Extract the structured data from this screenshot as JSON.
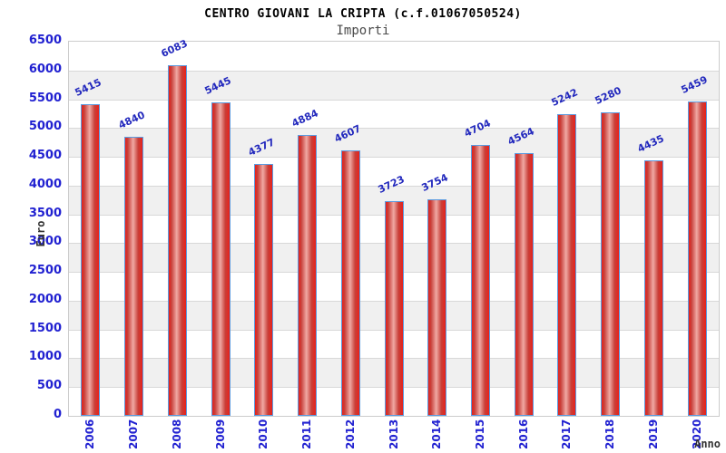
{
  "header": {
    "title": "CENTRO GIOVANI LA CRIPTA (c.f.01067050524)",
    "subtitle": "Importi"
  },
  "chart_data": {
    "type": "bar",
    "title": "CENTRO GIOVANI LA CRIPTA (c.f.01067050524)",
    "subtitle": "Importi",
    "xlabel": "Anno",
    "ylabel": "Euro",
    "categories": [
      "2006",
      "2007",
      "2008",
      "2009",
      "2010",
      "2011",
      "2012",
      "2013",
      "2014",
      "2015",
      "2016",
      "2017",
      "2018",
      "2019",
      "2020"
    ],
    "values": [
      5415,
      4840,
      6083,
      5445,
      4377,
      4884,
      4607,
      3723,
      3754,
      4704,
      4564,
      5242,
      5280,
      4435,
      5459
    ],
    "ylim": [
      0,
      6500
    ],
    "ytick_step": 500,
    "grid": "horizontal-bands",
    "legend": "none",
    "colors": {
      "tick_label_blue": "#2121d1",
      "value_label_blue": "#2228bd",
      "axis_text_dark": "#333333",
      "bar_edge_red": "#e8211a",
      "bar_dark_red": "#c8403a",
      "bar_mid_pink": "#f0a8a3",
      "bar_border_blue": "#5b9be0",
      "band_alt_gray": "#f0f0f0",
      "gridline_gray": "#d8d8d8",
      "plot_border_gray": "#cccccc"
    }
  }
}
